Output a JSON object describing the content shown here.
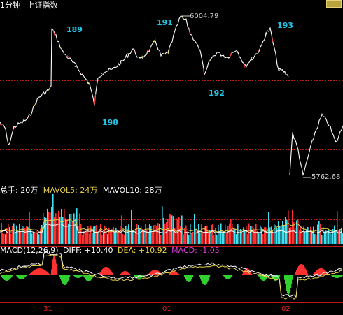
{
  "header": {
    "period": "1分钟",
    "index_name": "上证指数"
  },
  "corner_button": {
    "icon": "restore-icon",
    "color": "#b8a23c"
  },
  "price_panel": {
    "high_label": "6004.79",
    "low_label": "5762.68",
    "wave_labels": [
      "189",
      "191",
      "193",
      "192",
      "198"
    ]
  },
  "volume_panel": {
    "label_total": "总手: 20万",
    "label_mavol5": "MAVOL5: 24万",
    "label_mavol10": "MAVOL10: 28万"
  },
  "macd_panel": {
    "label_name": "MACD(12,26,9)",
    "label_diff": "DIFF: +10.40",
    "label_dea": "DEA: +10.92",
    "label_macd": "MACD: -1.05"
  },
  "x_axis": {
    "date_labels": [
      "31",
      "01",
      "02"
    ]
  },
  "colors": {
    "grid": "#c01818",
    "up": "#ff3030",
    "down": "#40e0f0",
    "price_line": "#ffffff",
    "ma_yellow": "#e8d24a",
    "macd_neg": "#30d030",
    "label_white": "#ffffff",
    "label_yellow": "#e8d24a",
    "label_magenta": "#e040e0",
    "label_green": "#30d030",
    "wave_label": "#22c6e8"
  },
  "chart_data": {
    "type": "line",
    "title": "上证指数 1分钟",
    "price_annotations": {
      "high": 6004.79,
      "low": 5762.68
    },
    "macd": {
      "diff": 10.4,
      "dea": 10.92,
      "macd": -1.05
    },
    "volume": {
      "total_wan": 20,
      "mavol5_wan": 24,
      "mavol10_wan": 28
    }
  }
}
